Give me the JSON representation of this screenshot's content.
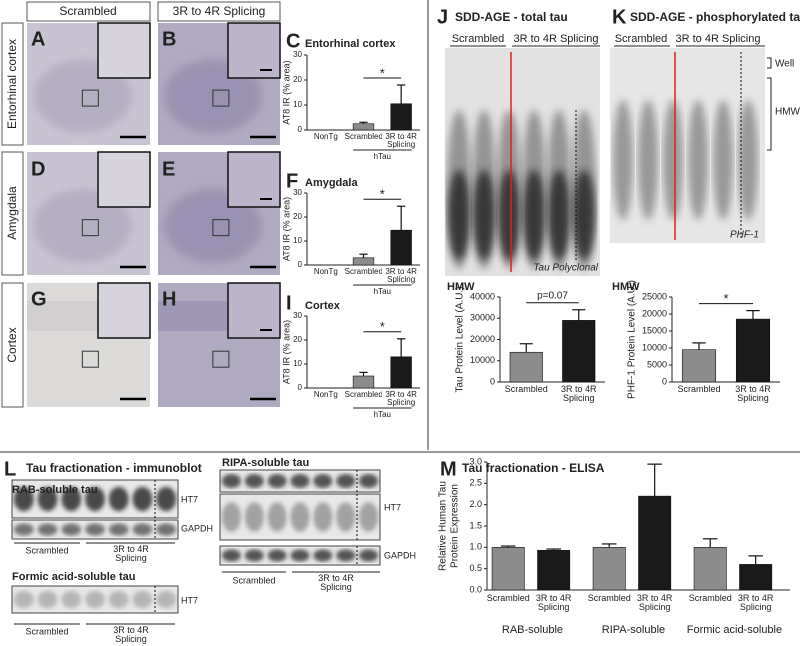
{
  "panel_letters": [
    "A",
    "B",
    "C",
    "D",
    "E",
    "F",
    "G",
    "H",
    "I",
    "J",
    "K",
    "L",
    "M"
  ],
  "column_headers": [
    "Scrambled",
    "3R to 4R Splicing"
  ],
  "row_labels": [
    "Entorhinal cortex",
    "Amygdala",
    "Cortex"
  ],
  "J": {
    "title": "SDD-AGE - total tau",
    "groups": [
      "Scrambled",
      "3R to 4R Splicing"
    ],
    "antibody": "Tau Polyclonal"
  },
  "K": {
    "title": "SDD-AGE - phosphorylated tau",
    "groups": [
      "Scrambled",
      "3R to 4R Splicing"
    ],
    "antibody": "PHF-1",
    "bands": [
      "Well",
      "HMW"
    ]
  },
  "L": {
    "title": "Tau fractionation - immunoblot",
    "blots": [
      {
        "title": "RAB-soluble tau",
        "bands": [
          "HT7",
          "GAPDH"
        ],
        "groups": [
          "Scrambled",
          "3R to 4R Splicing"
        ]
      },
      {
        "title": "Formic acid-soluble tau",
        "bands": [
          "HT7"
        ],
        "groups": [
          "Scrambled",
          "3R to 4R Splicing"
        ]
      },
      {
        "title": "RIPA-soluble tau",
        "bands": [
          "HT7",
          "GAPDH"
        ],
        "groups": [
          "Scrambled",
          "3R to 4R Splicing"
        ]
      }
    ]
  },
  "M": {
    "title": "Tau fractionation - ELISA"
  },
  "chart_data": [
    {
      "type": "bar",
      "title": "Entorhinal cortex",
      "ylabel": "AT8 IR (% area)",
      "categories": [
        "NonTg",
        "Scrambled",
        "3R to 4R Splicing"
      ],
      "values": [
        0,
        2.5,
        10.5
      ],
      "errors": [
        0,
        0.6,
        7.5
      ],
      "colors": [
        "#8c8c8c",
        "#8c8c8c",
        "#1a1a1a"
      ],
      "ylim": [
        0,
        30
      ],
      "yticks": [
        0,
        10,
        20,
        30
      ],
      "group_label": "hTau",
      "annotation": "*"
    },
    {
      "type": "bar",
      "title": "Amygdala",
      "ylabel": "AT8 IR (% area)",
      "categories": [
        "NonTg",
        "Scrambled",
        "3R to 4R Splicing"
      ],
      "values": [
        0,
        3,
        14.5
      ],
      "errors": [
        0,
        1.5,
        10
      ],
      "colors": [
        "#8c8c8c",
        "#8c8c8c",
        "#1a1a1a"
      ],
      "ylim": [
        0,
        30
      ],
      "yticks": [
        0,
        10,
        20,
        30
      ],
      "group_label": "hTau",
      "annotation": "*"
    },
    {
      "type": "bar",
      "title": "Cortex",
      "ylabel": "AT8 IR (% area)",
      "categories": [
        "NonTg",
        "Scrambled",
        "3R to 4R Splicing"
      ],
      "values": [
        0,
        5,
        13
      ],
      "errors": [
        0,
        1.5,
        7.5
      ],
      "colors": [
        "#8c8c8c",
        "#8c8c8c",
        "#1a1a1a"
      ],
      "ylim": [
        0,
        30
      ],
      "yticks": [
        0,
        10,
        20,
        30
      ],
      "group_label": "hTau",
      "annotation": "*"
    },
    {
      "type": "bar",
      "title": "HMW",
      "ylabel": "Tau Protein Level (A.U.)",
      "categories": [
        "Scrambled",
        "3R to 4R Splicing"
      ],
      "values": [
        14000,
        29000
      ],
      "errors": [
        4000,
        5000
      ],
      "colors": [
        "#8c8c8c",
        "#1a1a1a"
      ],
      "ylim": [
        0,
        40000
      ],
      "yticks": [
        0,
        10000,
        20000,
        30000,
        40000
      ],
      "annotation": "p=0.07"
    },
    {
      "type": "bar",
      "title": "HMW",
      "ylabel": "PHF-1 Protein Level (A.U.)",
      "categories": [
        "Scrambled",
        "3R to 4R Splicing"
      ],
      "values": [
        9500,
        18500
      ],
      "errors": [
        2000,
        2500
      ],
      "colors": [
        "#8c8c8c",
        "#1a1a1a"
      ],
      "ylim": [
        0,
        25000
      ],
      "yticks": [
        0,
        5000,
        10000,
        15000,
        20000,
        25000
      ],
      "annotation": "*"
    },
    {
      "type": "grouped_bar",
      "ylabel": [
        "Relative Human Tau",
        "Protein Expression"
      ],
      "categories": [
        "RAB-soluble",
        "RIPA-soluble",
        "Formic acid-soluble"
      ],
      "series": [
        {
          "name": "Scrambled",
          "color": "#8c8c8c",
          "values": [
            1.0,
            1.0,
            1.0
          ],
          "errors": [
            0.03,
            0.08,
            0.2
          ]
        },
        {
          "name": "3R to 4R Splicing",
          "color": "#1a1a1a",
          "values": [
            0.93,
            2.2,
            0.6
          ],
          "errors": [
            0.03,
            0.75,
            0.2
          ]
        }
      ],
      "ylim": [
        0,
        3
      ],
      "yticks": [
        {
          "value": 0,
          "label": "0.0"
        },
        0.5,
        {
          "value": 1,
          "label": "1.0"
        },
        1.5,
        {
          "value": 2,
          "label": "2.0"
        },
        2.5,
        {
          "value": 3,
          "label": "3.0"
        }
      ]
    }
  ]
}
